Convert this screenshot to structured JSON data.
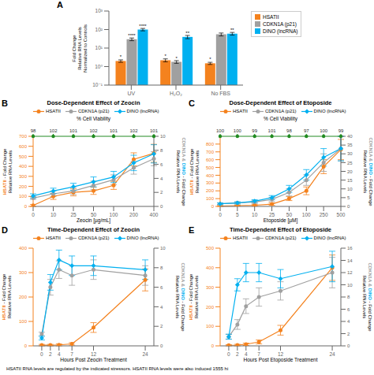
{
  "caption": "HSATII RNA levels are regulated by the indicated stressors. HSATII RNA levels were also induced 1555 hi",
  "chart_data": [
    {
      "type": "bar",
      "panel_label": "A",
      "categories": [
        "UV",
        "H₂O₂",
        "No FBS"
      ],
      "series": [
        {
          "name": "HSATII",
          "color": "#f4821e",
          "values": [
            2.0,
            2.2,
            1.5
          ],
          "error": [
            0.3,
            0.4,
            0.2
          ],
          "annotations": [
            "*",
            "*",
            "*"
          ]
        },
        {
          "name": "CDKN1A (p21)",
          "color": "#a0a0a0",
          "values": [
            30,
            1.8,
            55
          ],
          "error": [
            5,
            0.3,
            10
          ],
          "annotations": [
            "****",
            "*",
            null
          ]
        },
        {
          "name": "DINO (lncRNA)",
          "color": "#00b0f0",
          "values": [
            100,
            40,
            60
          ],
          "error": [
            15,
            8,
            10
          ],
          "annotations": [
            "****",
            "**",
            "**"
          ]
        }
      ],
      "ylabel": "Fold Change\nRelative RNA Levels\nNormalized to Controls",
      "log": "y",
      "ylim": [
        0.1,
        1000
      ],
      "yticks": [
        {
          "value": 0.1,
          "label": "10⁻¹"
        },
        {
          "value": 1,
          "label": "10⁰"
        },
        {
          "value": 10,
          "label": "10¹"
        },
        {
          "value": 100,
          "label": "10²"
        },
        {
          "value": 1000,
          "label": "10³"
        }
      ],
      "legend": "upper right",
      "grid": false
    },
    {
      "type": "line",
      "panel_label": "B",
      "title": "Dose-Dependent Effect of Zeocin",
      "xlabel": "Zeocin [µg/mL]",
      "ylabel": [
        "HSATII",
        "- Fold Change\nRelative RNA Levels"
      ],
      "y2label": [
        "CDKN1A &",
        "DINO",
        "- Fold Change\nRelative RNA Levels"
      ],
      "categories": [
        "0",
        "10",
        "25",
        "50",
        "100",
        "200",
        "400"
      ],
      "series": [
        {
          "name": "HSATII",
          "color": "#f4821e",
          "marker": "circle",
          "values": [
            10,
            100,
            140,
            155,
            210,
            470,
            530
          ],
          "error": [
            10,
            30,
            35,
            35,
            40,
            65,
            90
          ]
        },
        {
          "name": "CDKN1A (p21)",
          "color": "#a0a0a0",
          "marker": "circle",
          "axis": "y2",
          "values": [
            1.2,
            1.8,
            2.2,
            3.0,
            3.8,
            5.5,
            6.8
          ],
          "error": [
            0.2,
            0.4,
            0.5,
            0.6,
            0.7,
            0.9,
            1.0
          ]
        },
        {
          "name": "DINO (lncRNA)",
          "color": "#00b0f0",
          "marker": "diamond",
          "axis": "y2",
          "values": [
            1.5,
            2.2,
            2.8,
            3.5,
            4.2,
            6.2,
            7.5
          ],
          "error": [
            0.3,
            0.4,
            0.5,
            0.7,
            0.8,
            1.1,
            1.3
          ]
        }
      ],
      "top_axis": {
        "label": "% Cell Viability",
        "values": [
          98,
          102,
          101,
          102,
          101,
          102,
          101
        ],
        "color": "#228B22",
        "marker": "circle"
      },
      "ylim": [
        0,
        700
      ],
      "yticks": [
        0,
        100,
        200,
        300,
        400,
        500,
        600,
        700
      ],
      "y2lim": [
        0,
        10
      ],
      "y2ticks": [
        0,
        2,
        4,
        6,
        8,
        10
      ],
      "legend": "upper left",
      "grid": false
    },
    {
      "type": "line",
      "panel_label": "C",
      "title": "Dose-Dependent Effect of Etoposide",
      "xlabel": "Etoposide [µM]",
      "ylabel": [
        "HSATII",
        "- Fold Change\nRelative RNA Levels"
      ],
      "y2label": [
        "CDKN1A &",
        "DINO",
        "- Fold Change\nRelative RNA Levels"
      ],
      "categories": [
        "0",
        "5",
        "10",
        "25",
        "50",
        "100",
        "250",
        "500"
      ],
      "series": [
        {
          "name": "HSATII",
          "color": "#f4821e",
          "marker": "circle",
          "values": [
            5,
            10,
            15,
            30,
            100,
            200,
            510,
            730
          ],
          "error": [
            5,
            5,
            8,
            15,
            25,
            50,
            90,
            130
          ]
        },
        {
          "name": "CDKN1A (p21)",
          "color": "#a0a0a0",
          "marker": "circle",
          "axis": "y2",
          "values": [
            1.5,
            2,
            2.5,
            4,
            8,
            15,
            25,
            33
          ],
          "error": [
            0.5,
            0.6,
            0.8,
            1.2,
            2,
            3,
            5,
            7
          ]
        },
        {
          "name": "DINO (lncRNA)",
          "color": "#00b0f0",
          "marker": "diamond",
          "axis": "y2",
          "values": [
            1.5,
            2,
            3,
            5,
            10,
            18,
            28,
            33
          ],
          "error": [
            0.5,
            0.6,
            0.8,
            1.2,
            2,
            3,
            5,
            7
          ]
        }
      ],
      "top_axis": {
        "label": "% Cell Viability",
        "values": [
          100,
          100,
          99,
          101,
          98,
          97,
          100,
          99
        ],
        "color": "#228B22",
        "marker": "circle"
      },
      "ylim": [
        0,
        900
      ],
      "yticks": [
        0,
        100,
        200,
        300,
        400,
        500,
        600,
        700,
        800
      ],
      "y2lim": [
        0,
        40
      ],
      "y2ticks": [
        0,
        5,
        10,
        15,
        20,
        25,
        30,
        35,
        40
      ],
      "legend": "upper left",
      "grid": false
    },
    {
      "type": "line",
      "panel_label": "D",
      "title": "Time-Dependent Effect of Zeocin",
      "xlabel": "Hours Post Zeocin Treatment",
      "ylabel": [
        "HSATII",
        "- Fold Change\nRelative RNA Levels"
      ],
      "y2label": [
        "CDKN1A &",
        "DINO",
        "- Fold Change\nRelative RNA Levels"
      ],
      "x": [
        0,
        2,
        4,
        7,
        12,
        24
      ],
      "xlim": [
        -2,
        26
      ],
      "xticks": [
        0,
        2,
        4,
        7,
        12,
        24
      ],
      "series": [
        {
          "name": "HSATII",
          "color": "#f4821e",
          "marker": "circle",
          "values": [
            3,
            3,
            4,
            8,
            75,
            270
          ],
          "error": [
            3,
            3,
            4,
            5,
            20,
            45
          ]
        },
        {
          "name": "CDKN1A (p21)",
          "color": "#a0a0a0",
          "marker": "circle",
          "axis": "y2",
          "values": [
            1.2,
            6.0,
            7.8,
            7.2,
            7.8,
            7.2
          ],
          "error": [
            0.2,
            0.8,
            0.9,
            1.0,
            1.0,
            1.0
          ]
        },
        {
          "name": "DINO (lncRNA)",
          "color": "#00b0f0",
          "marker": "diamond",
          "axis": "y2",
          "values": [
            0.8,
            6.5,
            8.8,
            8.2,
            8.2,
            7.8
          ],
          "error": [
            0.2,
            0.8,
            1.0,
            1.0,
            1.0,
            1.0
          ]
        }
      ],
      "ylim": [
        0,
        400
      ],
      "yticks": [
        0,
        100,
        200,
        300,
        400
      ],
      "y2lim": [
        0,
        10
      ],
      "y2ticks": [
        0,
        2,
        4,
        6,
        8,
        10
      ],
      "legend": "upper left",
      "grid": false
    },
    {
      "type": "line",
      "panel_label": "E",
      "title": "Time-Dependent Effect of Etoposide",
      "xlabel": "Hours Post Etoposide Treatment",
      "ylabel": [
        "HSATII",
        "- Fold Change\nRelative RNA Levels"
      ],
      "y2label": [
        "CDKN1A &",
        "DINO",
        "- Fold Change\nRelative RNA Levels"
      ],
      "x": [
        0,
        2,
        4,
        7,
        12,
        24
      ],
      "xlim": [
        -2,
        26
      ],
      "xticks": [
        0,
        2,
        4,
        7,
        12,
        24
      ],
      "series": [
        {
          "name": "HSATII",
          "color": "#f4821e",
          "marker": "circle",
          "values": [
            3,
            4,
            8,
            20,
            80,
            400
          ],
          "error": [
            3,
            4,
            6,
            10,
            25,
            65
          ]
        },
        {
          "name": "CDKN1A (p21)",
          "color": "#a0a0a0",
          "marker": "circle",
          "axis": "y2",
          "values": [
            1.5,
            3.5,
            6.5,
            8,
            9,
            12
          ],
          "error": [
            0.4,
            0.8,
            1.2,
            1.5,
            1.5,
            2.5
          ]
        },
        {
          "name": "DINO (lncRNA)",
          "color": "#00b0f0",
          "marker": "diamond",
          "axis": "y2",
          "values": [
            1.5,
            10,
            12,
            12,
            11,
            13
          ],
          "error": [
            0.4,
            1.0,
            1.5,
            1.5,
            1.5,
            2.5
          ]
        }
      ],
      "ylim": [
        0,
        500
      ],
      "yticks": [
        0,
        100,
        200,
        300,
        400,
        500
      ],
      "y2lim": [
        0,
        16
      ],
      "y2ticks": [
        0,
        2,
        4,
        6,
        8,
        10,
        12,
        14,
        16
      ],
      "legend": "upper left",
      "grid": false
    }
  ]
}
